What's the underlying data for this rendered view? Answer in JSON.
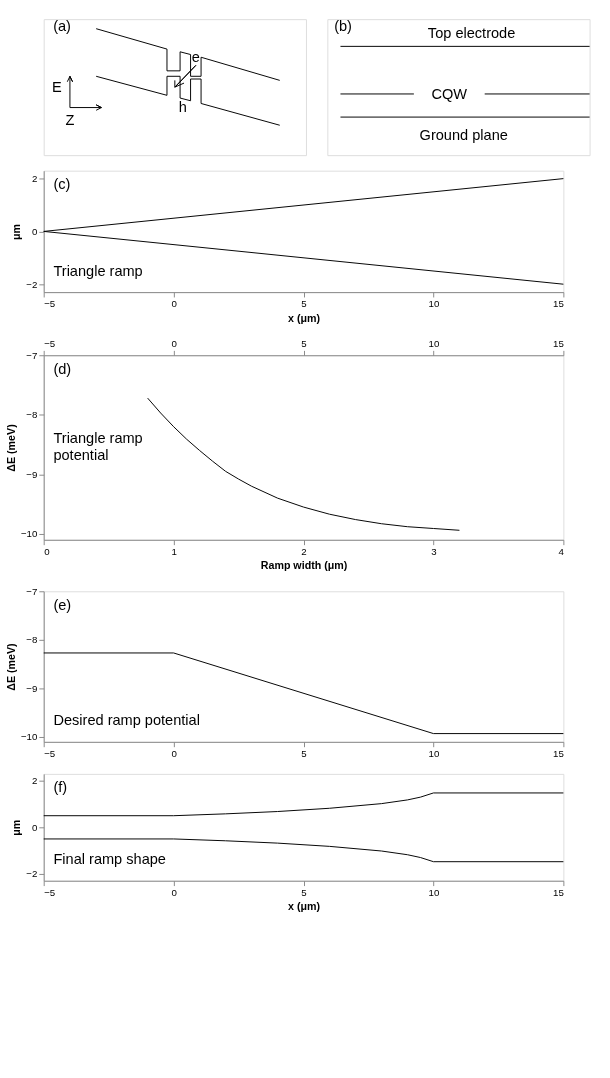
{
  "chart_data": [
    {
      "type": "other",
      "annotations": [
        "(a)",
        "E",
        "Z",
        "e",
        "h"
      ]
    },
    {
      "type": "other",
      "annotations": [
        "(b)",
        "Top electrode",
        "CQW",
        "Ground plane"
      ]
    },
    {
      "type": "line",
      "x": [
        -5,
        15
      ],
      "xlim": [
        -5,
        15
      ],
      "xticks": [
        -5,
        0,
        5,
        10,
        15
      ],
      "ylim": [
        -2.3,
        2.3
      ],
      "yticks": [
        -2,
        0,
        2
      ],
      "xlabel": "x (μm)",
      "ylabel": "μm",
      "grid": false,
      "annotations": [
        "(c)",
        "Triangle ramp"
      ],
      "series": [
        {
          "color": "#000000",
          "values": [
            0,
            2
          ]
        },
        {
          "color": "#000000",
          "values": [
            0,
            -2
          ]
        }
      ]
    },
    {
      "type": "line",
      "x": [
        0.8,
        0.9,
        1.0,
        1.1,
        1.2,
        1.3,
        1.4,
        1.5,
        1.6,
        1.8,
        2.0,
        2.2,
        2.4,
        2.6,
        2.8,
        3.0,
        3.2
      ],
      "xlim": [
        0,
        4
      ],
      "xticks": [
        0,
        1,
        2,
        3,
        4
      ],
      "x2lim": [
        -5,
        15
      ],
      "x2ticks": [
        -5,
        0,
        5,
        10,
        15
      ],
      "ylim": [
        -10.1,
        -7
      ],
      "yticks": [
        -10,
        -9,
        -8,
        -7
      ],
      "xlabel": "Ramp width (μm)",
      "ylabel": "ΔE (meV)",
      "grid": false,
      "annotations": [
        "(d)",
        "Triangle ramp\npotential"
      ],
      "series": [
        {
          "color": "#000000",
          "values": [
            -7.72,
            -7.97,
            -8.2,
            -8.41,
            -8.6,
            -8.78,
            -8.95,
            -9.08,
            -9.2,
            -9.4,
            -9.55,
            -9.67,
            -9.76,
            -9.83,
            -9.88,
            -9.91,
            -9.94
          ]
        }
      ]
    },
    {
      "type": "line",
      "x": [
        -5,
        0,
        10,
        15
      ],
      "xlim": [
        -5,
        15
      ],
      "xticks": [
        -5,
        0,
        5,
        10,
        15
      ],
      "ylim": [
        -10.1,
        -7
      ],
      "yticks": [
        -10,
        -9,
        -8,
        -7
      ],
      "ylabel": "ΔE (meV)",
      "grid": false,
      "annotations": [
        "(e)",
        "Desired ramp potential"
      ],
      "series": [
        {
          "color": "#000000",
          "values": [
            -8.27,
            -8.27,
            -9.93,
            -9.93
          ]
        }
      ]
    },
    {
      "type": "line",
      "x": [
        -5,
        0,
        2,
        4,
        6,
        8,
        9,
        9.5,
        10,
        15
      ],
      "xlim": [
        -5,
        15
      ],
      "xticks": [
        -5,
        0,
        5,
        10,
        15
      ],
      "ylim": [
        -2.3,
        2.3
      ],
      "yticks": [
        -2,
        0,
        2
      ],
      "xlabel": "x (μm)",
      "ylabel": "μm",
      "grid": false,
      "annotations": [
        "(f)",
        "Final ramp shape"
      ],
      "series": [
        {
          "color": "#000000",
          "values": [
            0.5,
            0.5,
            0.58,
            0.68,
            0.82,
            1.02,
            1.18,
            1.3,
            1.48,
            1.48
          ]
        },
        {
          "color": "#000000",
          "values": [
            -0.5,
            -0.5,
            -0.58,
            -0.68,
            -0.82,
            -1.02,
            -1.18,
            -1.3,
            -1.48,
            -1.48
          ]
        }
      ]
    }
  ]
}
